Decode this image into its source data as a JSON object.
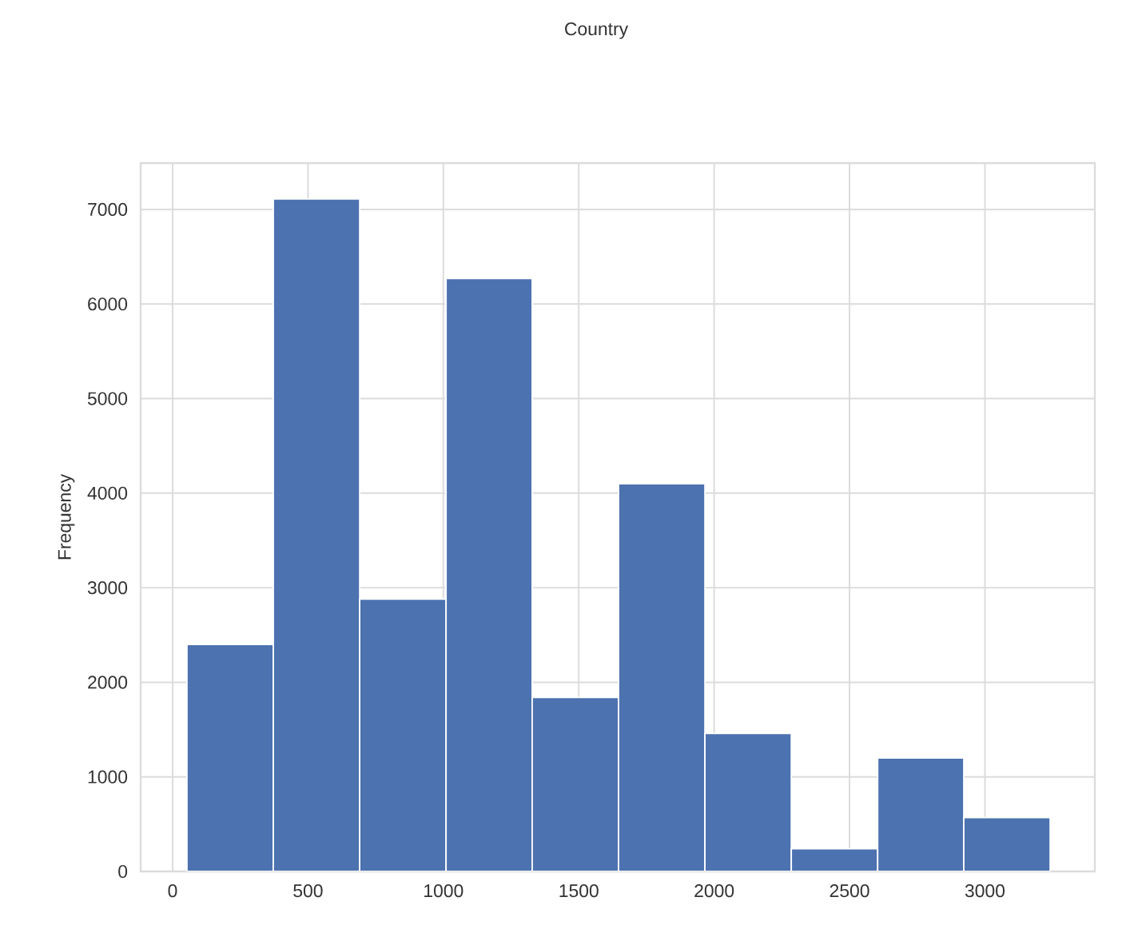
{
  "chart_data": {
    "type": "histogram",
    "ylabel": "Frequency",
    "annotations": [
      "Country"
    ],
    "bins": [
      53,
      372,
      691,
      1010,
      1328,
      1647,
      1966,
      2285,
      2604,
      2922,
      3241
    ],
    "values": [
      2400,
      7110,
      2880,
      6270,
      1840,
      4100,
      1460,
      240,
      1200,
      570
    ],
    "color": "#4c72b0",
    "xlim": [
      -118,
      3406
    ],
    "ylim": [
      0,
      7490
    ],
    "xticks": [
      0,
      500,
      1000,
      1500,
      2000,
      2500,
      3000
    ],
    "yticks": [
      0,
      1000,
      2000,
      3000,
      4000,
      5000,
      6000,
      7000
    ],
    "grid": true
  }
}
